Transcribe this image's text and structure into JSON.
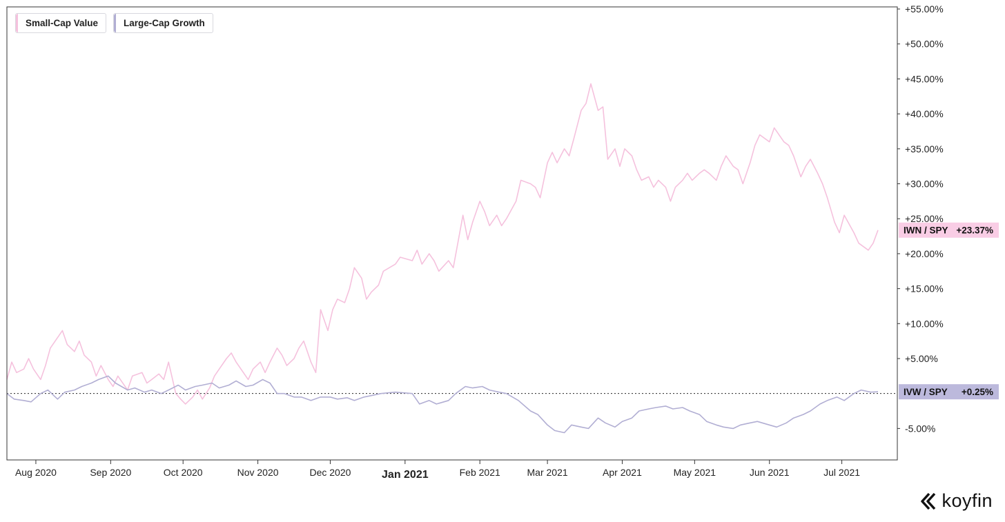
{
  "legend": [
    {
      "label": "Small-Cap Value",
      "color": "#f5c1dd"
    },
    {
      "label": "Large-Cap Growth",
      "color": "#b1aed3"
    }
  ],
  "brand": {
    "name": "koyfin",
    "icon": "koyfin-chevron-logo-icon"
  },
  "colors": {
    "frame": "#333333",
    "zero_line": "#222222",
    "text": "#222222"
  },
  "chart_data": {
    "type": "line",
    "x_start": "2020-07-20",
    "x_end": "2021-07-24",
    "ylim": [
      -9.5,
      55.3
    ],
    "yticks": [
      {
        "value": 55,
        "label": "+55.00%"
      },
      {
        "value": 50,
        "label": "+50.00%"
      },
      {
        "value": 45,
        "label": "+45.00%"
      },
      {
        "value": 40,
        "label": "+40.00%"
      },
      {
        "value": 35,
        "label": "+35.00%"
      },
      {
        "value": 30,
        "label": "+30.00%"
      },
      {
        "value": 25,
        "label": "+25.00%"
      },
      {
        "value": 20,
        "label": "+20.00%"
      },
      {
        "value": 15,
        "label": "+15.00%"
      },
      {
        "value": 10,
        "label": "+10.00%"
      },
      {
        "value": 5,
        "label": "+5.00%"
      },
      {
        "value": -5,
        "label": "-5.00%"
      }
    ],
    "xticks": [
      {
        "date": "2020-08-01",
        "label": "Aug 2020",
        "bold": false
      },
      {
        "date": "2020-09-01",
        "label": "Sep 2020",
        "bold": false
      },
      {
        "date": "2020-10-01",
        "label": "Oct 2020",
        "bold": false
      },
      {
        "date": "2020-11-01",
        "label": "Nov 2020",
        "bold": false
      },
      {
        "date": "2020-12-01",
        "label": "Dec 2020",
        "bold": false
      },
      {
        "date": "2021-01-01",
        "label": "Jan 2021",
        "bold": true
      },
      {
        "date": "2021-02-01",
        "label": "Feb 2021",
        "bold": false
      },
      {
        "date": "2021-03-01",
        "label": "Mar 2021",
        "bold": false
      },
      {
        "date": "2021-04-01",
        "label": "Apr 2021",
        "bold": false
      },
      {
        "date": "2021-05-01",
        "label": "May 2021",
        "bold": false
      },
      {
        "date": "2021-06-01",
        "label": "Jun 2021",
        "bold": false
      },
      {
        "date": "2021-07-01",
        "label": "Jul 2021",
        "bold": false
      }
    ],
    "reference_line": 0,
    "series": [
      {
        "name": "Small-Cap Value",
        "ticker_label": "IWN / SPY",
        "last_label": "+23.37%",
        "color": "#f5c1dd",
        "badge_color": "#f9cde5",
        "points": [
          [
            "2020-07-20",
            2.0
          ],
          [
            "2020-07-22",
            4.5
          ],
          [
            "2020-07-24",
            3.0
          ],
          [
            "2020-07-27",
            3.5
          ],
          [
            "2020-07-29",
            5.0
          ],
          [
            "2020-07-31",
            3.5
          ],
          [
            "2020-08-03",
            2.0
          ],
          [
            "2020-08-05",
            4.0
          ],
          [
            "2020-08-07",
            6.5
          ],
          [
            "2020-08-10",
            8.0
          ],
          [
            "2020-08-12",
            9.0
          ],
          [
            "2020-08-14",
            7.0
          ],
          [
            "2020-08-17",
            6.0
          ],
          [
            "2020-08-19",
            7.5
          ],
          [
            "2020-08-21",
            5.5
          ],
          [
            "2020-08-24",
            4.5
          ],
          [
            "2020-08-26",
            2.5
          ],
          [
            "2020-08-28",
            4.0
          ],
          [
            "2020-08-31",
            2.0
          ],
          [
            "2020-09-02",
            1.0
          ],
          [
            "2020-09-04",
            2.5
          ],
          [
            "2020-09-08",
            0.5
          ],
          [
            "2020-09-10",
            2.5
          ],
          [
            "2020-09-14",
            3.0
          ],
          [
            "2020-09-16",
            1.5
          ],
          [
            "2020-09-18",
            2.0
          ],
          [
            "2020-09-21",
            2.8
          ],
          [
            "2020-09-23",
            2.0
          ],
          [
            "2020-09-25",
            4.5
          ],
          [
            "2020-09-28",
            0.0
          ],
          [
            "2020-09-30",
            -0.8
          ],
          [
            "2020-10-02",
            -1.5
          ],
          [
            "2020-10-05",
            -0.5
          ],
          [
            "2020-10-07",
            0.5
          ],
          [
            "2020-10-09",
            -0.8
          ],
          [
            "2020-10-12",
            0.8
          ],
          [
            "2020-10-14",
            2.5
          ],
          [
            "2020-10-16",
            3.5
          ],
          [
            "2020-10-19",
            5.0
          ],
          [
            "2020-10-21",
            5.8
          ],
          [
            "2020-10-23",
            4.5
          ],
          [
            "2020-10-26",
            3.0
          ],
          [
            "2020-10-28",
            2.0
          ],
          [
            "2020-10-30",
            3.5
          ],
          [
            "2020-11-02",
            4.5
          ],
          [
            "2020-11-04",
            3.0
          ],
          [
            "2020-11-06",
            4.5
          ],
          [
            "2020-11-09",
            6.5
          ],
          [
            "2020-11-11",
            5.5
          ],
          [
            "2020-11-13",
            4.0
          ],
          [
            "2020-11-16",
            5.0
          ],
          [
            "2020-11-18",
            6.5
          ],
          [
            "2020-11-20",
            7.5
          ],
          [
            "2020-11-23",
            4.5
          ],
          [
            "2020-11-25",
            3.0
          ],
          [
            "2020-11-27",
            12.0
          ],
          [
            "2020-11-30",
            9.0
          ],
          [
            "2020-12-02",
            12.0
          ],
          [
            "2020-12-04",
            13.5
          ],
          [
            "2020-12-07",
            13.0
          ],
          [
            "2020-12-09",
            15.0
          ],
          [
            "2020-12-11",
            18.0
          ],
          [
            "2020-12-14",
            16.5
          ],
          [
            "2020-12-16",
            13.5
          ],
          [
            "2020-12-18",
            14.5
          ],
          [
            "2020-12-21",
            15.5
          ],
          [
            "2020-12-23",
            17.5
          ],
          [
            "2020-12-28",
            18.5
          ],
          [
            "2020-12-30",
            19.5
          ],
          [
            "2021-01-04",
            19.0
          ],
          [
            "2021-01-06",
            20.5
          ],
          [
            "2021-01-08",
            18.5
          ],
          [
            "2021-01-11",
            20.0
          ],
          [
            "2021-01-13",
            19.0
          ],
          [
            "2021-01-15",
            17.5
          ],
          [
            "2021-01-19",
            19.0
          ],
          [
            "2021-01-21",
            18.0
          ],
          [
            "2021-01-25",
            25.5
          ],
          [
            "2021-01-27",
            22.0
          ],
          [
            "2021-01-29",
            24.5
          ],
          [
            "2021-02-01",
            27.5
          ],
          [
            "2021-02-03",
            26.0
          ],
          [
            "2021-02-05",
            24.0
          ],
          [
            "2021-02-08",
            25.5
          ],
          [
            "2021-02-10",
            24.0
          ],
          [
            "2021-02-12",
            25.0
          ],
          [
            "2021-02-16",
            27.5
          ],
          [
            "2021-02-18",
            30.5
          ],
          [
            "2021-02-22",
            30.0
          ],
          [
            "2021-02-24",
            29.5
          ],
          [
            "2021-02-26",
            28.0
          ],
          [
            "2021-03-01",
            33.0
          ],
          [
            "2021-03-03",
            34.5
          ],
          [
            "2021-03-05",
            33.0
          ],
          [
            "2021-03-08",
            35.0
          ],
          [
            "2021-03-10",
            34.0
          ],
          [
            "2021-03-12",
            36.5
          ],
          [
            "2021-03-15",
            40.5
          ],
          [
            "2021-03-17",
            41.5
          ],
          [
            "2021-03-19",
            44.3
          ],
          [
            "2021-03-22",
            40.5
          ],
          [
            "2021-03-24",
            41.0
          ],
          [
            "2021-03-26",
            33.5
          ],
          [
            "2021-03-29",
            35.0
          ],
          [
            "2021-03-31",
            32.5
          ],
          [
            "2021-04-02",
            35.0
          ],
          [
            "2021-04-05",
            34.0
          ],
          [
            "2021-04-07",
            32.0
          ],
          [
            "2021-04-09",
            30.5
          ],
          [
            "2021-04-12",
            31.0
          ],
          [
            "2021-04-14",
            29.5
          ],
          [
            "2021-04-16",
            30.5
          ],
          [
            "2021-04-19",
            29.5
          ],
          [
            "2021-04-21",
            27.5
          ],
          [
            "2021-04-23",
            29.5
          ],
          [
            "2021-04-26",
            30.5
          ],
          [
            "2021-04-28",
            31.5
          ],
          [
            "2021-04-30",
            30.5
          ],
          [
            "2021-05-03",
            31.5
          ],
          [
            "2021-05-05",
            32.0
          ],
          [
            "2021-05-07",
            31.5
          ],
          [
            "2021-05-10",
            30.5
          ],
          [
            "2021-05-12",
            32.5
          ],
          [
            "2021-05-14",
            34.0
          ],
          [
            "2021-05-17",
            32.5
          ],
          [
            "2021-05-19",
            32.0
          ],
          [
            "2021-05-21",
            30.0
          ],
          [
            "2021-05-24",
            33.0
          ],
          [
            "2021-05-26",
            35.5
          ],
          [
            "2021-05-28",
            37.0
          ],
          [
            "2021-06-01",
            36.0
          ],
          [
            "2021-06-03",
            38.0
          ],
          [
            "2021-06-07",
            36.0
          ],
          [
            "2021-06-09",
            35.5
          ],
          [
            "2021-06-11",
            34.0
          ],
          [
            "2021-06-14",
            31.0
          ],
          [
            "2021-06-16",
            32.5
          ],
          [
            "2021-06-18",
            33.5
          ],
          [
            "2021-06-21",
            31.5
          ],
          [
            "2021-06-23",
            30.0
          ],
          [
            "2021-06-25",
            28.0
          ],
          [
            "2021-06-28",
            24.5
          ],
          [
            "2021-06-30",
            23.0
          ],
          [
            "2021-07-02",
            25.5
          ],
          [
            "2021-07-06",
            23.0
          ],
          [
            "2021-07-08",
            21.5
          ],
          [
            "2021-07-12",
            20.5
          ],
          [
            "2021-07-14",
            21.5
          ],
          [
            "2021-07-16",
            23.37
          ]
        ]
      },
      {
        "name": "Large-Cap Growth",
        "ticker_label": "IVW / SPY",
        "last_label": "+0.25%",
        "color": "#b1aed3",
        "badge_color": "#bcb9dc",
        "points": [
          [
            "2020-07-20",
            0.0
          ],
          [
            "2020-07-23",
            -0.8
          ],
          [
            "2020-07-27",
            -1.0
          ],
          [
            "2020-07-30",
            -1.2
          ],
          [
            "2020-08-03",
            0.0
          ],
          [
            "2020-08-06",
            0.5
          ],
          [
            "2020-08-10",
            -0.8
          ],
          [
            "2020-08-13",
            0.2
          ],
          [
            "2020-08-17",
            0.5
          ],
          [
            "2020-08-20",
            1.0
          ],
          [
            "2020-08-24",
            1.5
          ],
          [
            "2020-08-27",
            2.0
          ],
          [
            "2020-08-31",
            2.5
          ],
          [
            "2020-09-03",
            1.5
          ],
          [
            "2020-09-08",
            0.5
          ],
          [
            "2020-09-11",
            0.8
          ],
          [
            "2020-09-15",
            0.2
          ],
          [
            "2020-09-18",
            0.5
          ],
          [
            "2020-09-22",
            0.0
          ],
          [
            "2020-09-25",
            0.5
          ],
          [
            "2020-09-29",
            1.2
          ],
          [
            "2020-10-02",
            0.5
          ],
          [
            "2020-10-06",
            1.0
          ],
          [
            "2020-10-09",
            1.2
          ],
          [
            "2020-10-13",
            1.5
          ],
          [
            "2020-10-16",
            0.8
          ],
          [
            "2020-10-20",
            1.2
          ],
          [
            "2020-10-23",
            1.8
          ],
          [
            "2020-10-27",
            1.0
          ],
          [
            "2020-10-30",
            1.2
          ],
          [
            "2020-11-03",
            2.0
          ],
          [
            "2020-11-06",
            1.5
          ],
          [
            "2020-11-09",
            0.0
          ],
          [
            "2020-11-12",
            0.0
          ],
          [
            "2020-11-16",
            -0.5
          ],
          [
            "2020-11-19",
            -0.5
          ],
          [
            "2020-11-23",
            -1.0
          ],
          [
            "2020-11-27",
            -0.5
          ],
          [
            "2020-12-01",
            -0.5
          ],
          [
            "2020-12-04",
            -0.8
          ],
          [
            "2020-12-08",
            -0.6
          ],
          [
            "2020-12-11",
            -1.0
          ],
          [
            "2020-12-15",
            -0.5
          ],
          [
            "2020-12-18",
            -0.3
          ],
          [
            "2020-12-22",
            0.0
          ],
          [
            "2020-12-28",
            0.2
          ],
          [
            "2021-01-04",
            0.0
          ],
          [
            "2021-01-07",
            -1.5
          ],
          [
            "2021-01-11",
            -1.0
          ],
          [
            "2021-01-14",
            -1.5
          ],
          [
            "2021-01-19",
            -1.0
          ],
          [
            "2021-01-22",
            0.0
          ],
          [
            "2021-01-26",
            1.0
          ],
          [
            "2021-01-29",
            0.8
          ],
          [
            "2021-02-02",
            1.0
          ],
          [
            "2021-02-05",
            0.5
          ],
          [
            "2021-02-09",
            0.2
          ],
          [
            "2021-02-12",
            0.0
          ],
          [
            "2021-02-17",
            -1.0
          ],
          [
            "2021-02-22",
            -2.5
          ],
          [
            "2021-02-25",
            -3.0
          ],
          [
            "2021-03-01",
            -4.5
          ],
          [
            "2021-03-04",
            -5.3
          ],
          [
            "2021-03-08",
            -5.6
          ],
          [
            "2021-03-11",
            -4.5
          ],
          [
            "2021-03-15",
            -4.8
          ],
          [
            "2021-03-18",
            -5.0
          ],
          [
            "2021-03-22",
            -3.5
          ],
          [
            "2021-03-25",
            -4.2
          ],
          [
            "2021-03-29",
            -4.8
          ],
          [
            "2021-04-01",
            -4.0
          ],
          [
            "2021-04-05",
            -3.5
          ],
          [
            "2021-04-08",
            -2.5
          ],
          [
            "2021-04-12",
            -2.2
          ],
          [
            "2021-04-15",
            -2.0
          ],
          [
            "2021-04-19",
            -1.8
          ],
          [
            "2021-04-22",
            -2.2
          ],
          [
            "2021-04-26",
            -2.0
          ],
          [
            "2021-04-29",
            -2.5
          ],
          [
            "2021-05-03",
            -3.0
          ],
          [
            "2021-05-06",
            -4.0
          ],
          [
            "2021-05-10",
            -4.5
          ],
          [
            "2021-05-13",
            -4.8
          ],
          [
            "2021-05-17",
            -5.0
          ],
          [
            "2021-05-20",
            -4.5
          ],
          [
            "2021-05-24",
            -4.2
          ],
          [
            "2021-05-27",
            -4.0
          ],
          [
            "2021-06-01",
            -4.5
          ],
          [
            "2021-06-04",
            -4.8
          ],
          [
            "2021-06-08",
            -4.2
          ],
          [
            "2021-06-11",
            -3.5
          ],
          [
            "2021-06-15",
            -3.0
          ],
          [
            "2021-06-18",
            -2.5
          ],
          [
            "2021-06-22",
            -1.5
          ],
          [
            "2021-06-25",
            -1.0
          ],
          [
            "2021-06-29",
            -0.5
          ],
          [
            "2021-07-02",
            -1.0
          ],
          [
            "2021-07-06",
            0.0
          ],
          [
            "2021-07-09",
            0.5
          ],
          [
            "2021-07-13",
            0.2
          ],
          [
            "2021-07-16",
            0.25
          ]
        ]
      }
    ]
  }
}
